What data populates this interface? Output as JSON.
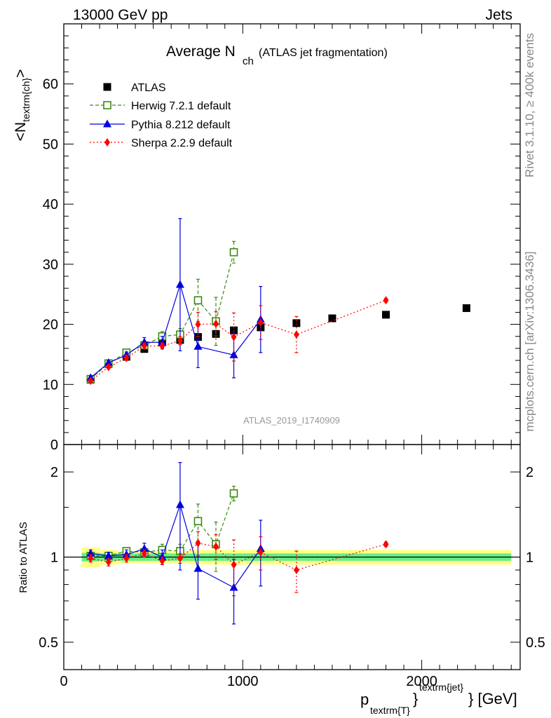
{
  "header": {
    "left": "13000 GeV pp",
    "right": "Jets"
  },
  "side_labels": {
    "rivet": "Rivet 3.1.10, ≥ 400k events",
    "mcplots": "mcplots.cern.ch [arXiv:1306.3436]"
  },
  "plot_title": {
    "main": "Average N",
    "sub": "ch",
    "extra": "(ATLAS jet fragmentation)"
  },
  "watermark": "ATLAS_2019_I1740909",
  "axes": {
    "ylabel_top": "<N",
    "ylabel_top_sub": "textrm{ch}",
    "ylabel_top_close": ">",
    "ylabel_bottom": "Ratio to ATLAS",
    "xlabel_p": "p",
    "xlabel_sub": "textrm{T}",
    "xlabel_brace": "}",
    "xlabel_sup": "textrm{jet}",
    "xlabel_unit": "} [GeV]"
  },
  "colors": {
    "atlas": "#000000",
    "herwig": "#3a8a10",
    "pythia": "#0000dd",
    "sherpa": "#ff0000",
    "band_inner": "#66ee88",
    "band_outer": "#ffff88"
  },
  "chart_data": [
    {
      "type": "scatter",
      "panel": "main",
      "xlim": [
        0,
        2550
      ],
      "ylim": [
        0,
        70
      ],
      "xticks": [
        0,
        1000,
        2000
      ],
      "yticks": [
        0,
        10,
        20,
        30,
        40,
        50,
        60
      ],
      "xticklabels": [
        "0",
        "1000",
        "2000"
      ],
      "yticklabels": [
        "0",
        "10",
        "20",
        "30",
        "40",
        "50",
        "60"
      ],
      "legend_position": "top-left",
      "series": [
        {
          "name": "ATLAS",
          "style": "data",
          "x": [
            150,
            250,
            350,
            450,
            550,
            650,
            750,
            850,
            950,
            1100,
            1300,
            1500,
            1800,
            2250
          ],
          "y": [
            10.8,
            13.4,
            14.6,
            15.9,
            17.0,
            17.4,
            17.9,
            18.4,
            19.0,
            19.5,
            20.2,
            21.0,
            21.6,
            22.7
          ],
          "err": [
            0.5,
            0.5,
            0.5,
            0.5,
            0.5,
            0.5,
            0.6,
            0.6,
            0.6,
            0.6,
            0.6,
            0.6,
            0.6,
            0.6
          ]
        },
        {
          "name": "Herwig 7.2.1 default",
          "style": "herwig",
          "x": [
            150,
            250,
            350,
            450,
            550,
            650,
            750,
            850,
            950
          ],
          "y": [
            10.9,
            13.5,
            15.3,
            16.5,
            18.0,
            18.3,
            24.0,
            20.5,
            32.0
          ],
          "err": [
            0.3,
            0.3,
            0.4,
            0.5,
            0.8,
            1.0,
            3.5,
            4.0,
            1.8
          ]
        },
        {
          "name": "Pythia 8.212 default",
          "style": "pythia",
          "x": [
            150,
            250,
            350,
            450,
            550,
            650,
            750,
            950,
            1100
          ],
          "y": [
            11.1,
            13.6,
            14.9,
            17.0,
            17.0,
            26.6,
            16.3,
            14.9,
            20.8
          ],
          "err": [
            0.3,
            0.3,
            0.5,
            0.8,
            1.0,
            11.0,
            3.5,
            3.8,
            5.5
          ]
        },
        {
          "name": "Sherpa 2.2.9 default",
          "style": "sherpa",
          "x": [
            150,
            250,
            350,
            450,
            550,
            650,
            750,
            850,
            950,
            1100,
            1300,
            1800
          ],
          "y": [
            10.6,
            12.9,
            14.4,
            16.4,
            16.4,
            17.3,
            20.0,
            20.1,
            17.9,
            20.3,
            18.3,
            24.0
          ],
          "err": [
            0.3,
            0.3,
            0.4,
            0.5,
            0.5,
            0.7,
            2.0,
            2.0,
            4.0,
            2.8,
            3.0,
            0.3
          ]
        }
      ]
    },
    {
      "type": "scatter",
      "panel": "ratio",
      "ylog": true,
      "xlim": [
        0,
        2550
      ],
      "ylim": [
        0.4,
        2.5
      ],
      "yticks": [
        0.5,
        1,
        2
      ],
      "yticklabels": [
        "0.5",
        "1",
        "2"
      ],
      "band_x": [
        100,
        200,
        300,
        400,
        500,
        600,
        700,
        800,
        900,
        1000,
        1200,
        1400,
        1600,
        2000,
        2500
      ],
      "band_inner": [
        0.035,
        0.03,
        0.03,
        0.03,
        0.03,
        0.03,
        0.03,
        0.03,
        0.03,
        0.03,
        0.03,
        0.03,
        0.03,
        0.03
      ],
      "band_outer": [
        0.08,
        0.06,
        0.05,
        0.05,
        0.05,
        0.05,
        0.06,
        0.06,
        0.06,
        0.06,
        0.06,
        0.06,
        0.06,
        0.06
      ],
      "series": [
        {
          "name": "Herwig 7.2.1 default",
          "style": "herwig",
          "x": [
            150,
            250,
            350,
            450,
            550,
            650,
            750,
            850,
            950
          ],
          "y": [
            1.01,
            1.01,
            1.05,
            1.04,
            1.06,
            1.05,
            1.34,
            1.11,
            1.68
          ],
          "err": [
            0.03,
            0.03,
            0.03,
            0.04,
            0.05,
            0.06,
            0.2,
            0.22,
            0.1
          ]
        },
        {
          "name": "Pythia 8.212 default",
          "style": "pythia",
          "x": [
            150,
            250,
            350,
            450,
            550,
            650,
            750,
            950,
            1100
          ],
          "y": [
            1.03,
            1.01,
            1.02,
            1.07,
            1.0,
            1.53,
            0.91,
            0.78,
            1.07
          ],
          "err": [
            0.03,
            0.03,
            0.04,
            0.05,
            0.06,
            0.63,
            0.2,
            0.2,
            0.28
          ]
        },
        {
          "name": "Sherpa 2.2.9 default",
          "style": "sherpa",
          "x": [
            150,
            250,
            350,
            450,
            550,
            650,
            750,
            850,
            950,
            1100,
            1300,
            1800
          ],
          "y": [
            0.99,
            0.96,
            0.99,
            1.03,
            0.97,
            0.99,
            1.12,
            1.09,
            0.94,
            1.04,
            0.9,
            1.11
          ],
          "err": [
            0.03,
            0.03,
            0.03,
            0.03,
            0.03,
            0.04,
            0.11,
            0.11,
            0.21,
            0.14,
            0.15,
            0.02
          ]
        }
      ]
    }
  ]
}
